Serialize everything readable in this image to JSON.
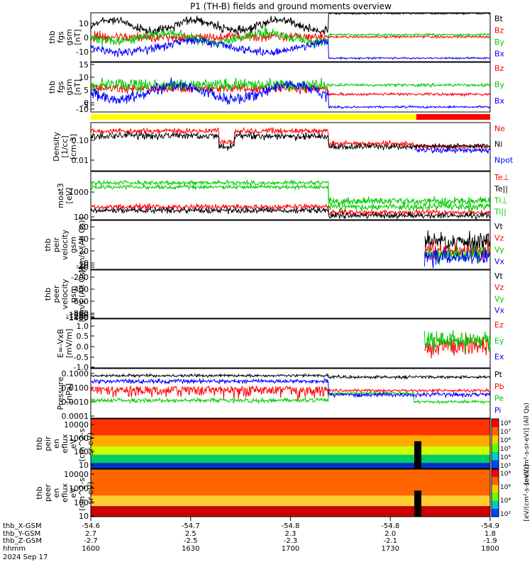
{
  "chart_data": {
    "type": "line",
    "title": "P1 (TH-B) fields and ground moments overview",
    "date_label": "2024 Sep 17",
    "x_ticks": [
      "1600",
      "1630",
      "1700",
      "1730",
      "1800"
    ],
    "ephemeris": [
      {
        "name": "thb_X-GSM",
        "values": [
          "-54.6",
          "-54.7",
          "-54.8",
          "-54.8",
          "-54.9"
        ]
      },
      {
        "name": "thb_Y-GSM",
        "values": [
          "2.7",
          "2.5",
          "2.3",
          "2.0",
          "1.8"
        ]
      },
      {
        "name": "thb_Z-GSM",
        "values": [
          "-2.7",
          "-2.5",
          "-2.3",
          "-2.1",
          "-1.9"
        ]
      },
      {
        "name": "hhmm",
        "values": []
      }
    ],
    "mode_bar": [
      {
        "from": "16:00",
        "to": "17:35",
        "color": "#ffff00"
      },
      {
        "from": "17:35",
        "to": "18:00",
        "color": "#ff0000"
      }
    ],
    "panels": [
      {
        "ylabel": [
          "thb",
          "fgs",
          "gsm",
          "[nT]"
        ],
        "scale": "linear",
        "ticks": [
          "10",
          "0",
          "-10"
        ],
        "legend": [
          {
            "label": "Bt",
            "color": "#000000"
          },
          {
            "label": "Bz",
            "color": "#ff0000"
          },
          {
            "label": "By",
            "color": "#00cc00"
          },
          {
            "label": "Bx",
            "color": "#0000ff"
          }
        ]
      },
      {
        "ylabel": [
          "thb",
          "fgs",
          "gsm",
          "[nT]"
        ],
        "scale": "linear",
        "ticks": [
          "15",
          "10",
          "5",
          "0",
          "-5",
          "-10"
        ],
        "legend": [
          {
            "label": "Bz",
            "color": "#ff0000"
          },
          {
            "label": "By",
            "color": "#00cc00"
          },
          {
            "label": "Bx",
            "color": "#0000ff"
          }
        ]
      },
      {
        "ylabel": [
          "Density",
          "[1/cc]",
          "[cm-3]"
        ],
        "scale": "log",
        "ticks": [
          "0.10",
          "0.01"
        ],
        "legend": [
          {
            "label": "Ne",
            "color": "#ff0000"
          },
          {
            "label": "Ni",
            "color": "#000000"
          },
          {
            "label": "Npot",
            "color": "#0000ff"
          }
        ]
      },
      {
        "ylabel": [
          "moat3",
          "[eV]"
        ],
        "scale": "log",
        "ticks": [
          "1000",
          "100"
        ],
        "legend": [
          {
            "label": "Te⊥",
            "color": "#ff0000"
          },
          {
            "label": "Te||",
            "color": "#000000"
          },
          {
            "label": "Ti⊥",
            "color": "#00cc00"
          },
          {
            "label": "Ti||",
            "color": "#00cc00"
          }
        ]
      },
      {
        "ylabel": [
          "thb",
          "peir",
          "velocity",
          "gsm",
          "[km/s (All Qs)]"
        ],
        "scale": "linear",
        "ticks": [
          "60",
          "40",
          "20",
          "0",
          "-20",
          "-40"
        ],
        "legend": [
          {
            "label": "Vt",
            "color": "#000000"
          },
          {
            "label": "Vz",
            "color": "#ff0000"
          },
          {
            "label": "Vy",
            "color": "#00cc00"
          },
          {
            "label": "Vx",
            "color": "#0000ff"
          }
        ]
      },
      {
        "ylabel": [
          "thb",
          "peer",
          "velocity",
          "gsm",
          "[km/s (All Qs)]"
        ],
        "scale": "linear",
        "ticks": [
          "-200",
          "-400",
          "-600",
          "-800",
          "-1000",
          "-1200",
          "-1400"
        ],
        "legend": [
          {
            "label": "Vt",
            "color": "#000000"
          },
          {
            "label": "Vz",
            "color": "#ff0000"
          },
          {
            "label": "Vy",
            "color": "#00cc00"
          },
          {
            "label": "Vx",
            "color": "#0000ff"
          }
        ]
      },
      {
        "ylabel": [
          "E=-VxB",
          "[mV/m]"
        ],
        "scale": "linear",
        "ticks": [
          "1.0",
          "0.5",
          "0.0",
          "-0.5",
          "-1.0"
        ],
        "legend": [
          {
            "label": "Ez",
            "color": "#ff0000"
          },
          {
            "label": "Ey",
            "color": "#00cc00"
          },
          {
            "label": "Ex",
            "color": "#0000ff"
          }
        ]
      },
      {
        "ylabel": [
          "Pressure",
          "[nPa]"
        ],
        "scale": "log",
        "ticks": [
          "0.1000",
          "0.0100",
          "0.0010",
          "0.0001"
        ],
        "legend": [
          {
            "label": "Pt",
            "color": "#000000"
          },
          {
            "label": "Pb",
            "color": "#ff0000"
          },
          {
            "label": "Pe",
            "color": "#00cc00"
          },
          {
            "label": "Pi",
            "color": "#0000ff"
          }
        ]
      },
      {
        "ylabel": [
          "thb",
          "peir",
          "en",
          "eflux",
          "eV",
          "(cm^2-s-",
          "sr-eV)"
        ],
        "scale": "log",
        "ticks": [
          "10000",
          "1000",
          "100",
          "10"
        ],
        "colorbar_ticks": [
          "10⁸",
          "10⁷",
          "10⁶",
          "10⁵",
          "10⁴",
          "10³"
        ],
        "colorbar_label": "[eV/(cm²-s-sr-eV)] (All Qs)"
      },
      {
        "ylabel": [
          "thb",
          "peer",
          "en",
          "eflux",
          "eV",
          "(cm^2-s-",
          "sr-eV)"
        ],
        "scale": "log",
        "ticks": [
          "10000",
          "1000",
          "100",
          "10"
        ],
        "colorbar_ticks": [
          "10⁸",
          "10⁶",
          "10⁴",
          "10²"
        ],
        "colorbar_label": "[eV/(cm²-s-sr-eV)]"
      }
    ]
  }
}
